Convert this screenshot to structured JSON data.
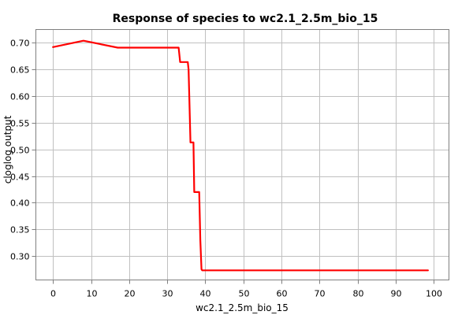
{
  "chart_data": {
    "type": "line",
    "title": "Response of species to wc2.1_2.5m_bio_15",
    "xlabel": "wc2.1_2.5m_bio_15",
    "ylabel": "cloglog output",
    "xlim": [
      -4.5,
      104
    ],
    "ylim": [
      0.255,
      0.725
    ],
    "x_ticks": [
      0,
      10,
      20,
      30,
      40,
      50,
      60,
      70,
      80,
      90,
      100
    ],
    "y_ticks": [
      0.3,
      0.35,
      0.4,
      0.45,
      0.5,
      0.55,
      0.6,
      0.65,
      0.7
    ],
    "grid": true,
    "legend": "none",
    "series": [
      {
        "color": "#ff0000",
        "x": [
          0,
          8,
          17,
          33,
          33.4,
          35.4,
          35.6,
          35.8,
          36.1,
          36.9,
          37.1,
          38.4,
          38.7,
          39.0,
          39.2,
          98.5
        ],
        "y": [
          0.692,
          0.704,
          0.691,
          0.691,
          0.664,
          0.664,
          0.65,
          0.6,
          0.513,
          0.513,
          0.42,
          0.42,
          0.33,
          0.275,
          0.273,
          0.273
        ]
      }
    ]
  }
}
